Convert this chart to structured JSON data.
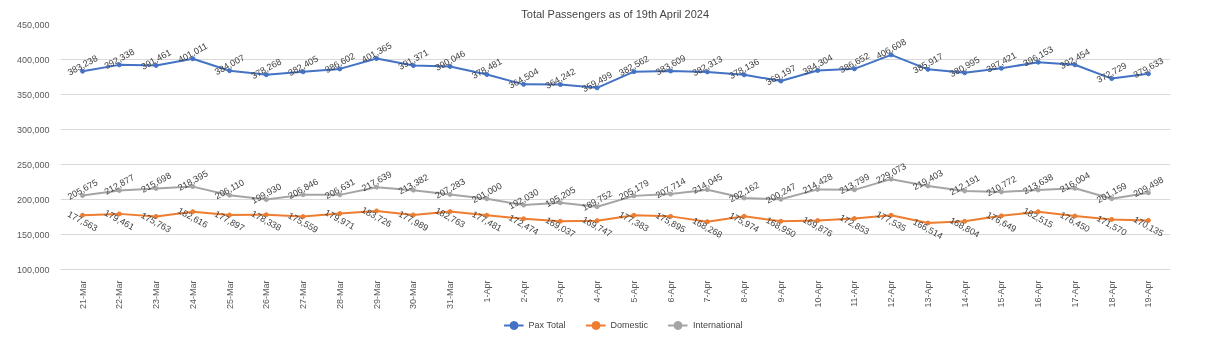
{
  "chart_data": {
    "type": "line",
    "title": "Total Passengers as of 19th April 2024",
    "categories": [
      "21-Mar",
      "22-Mar",
      "23-Mar",
      "24-Mar",
      "25-Mar",
      "26-Mar",
      "27-Mar",
      "28-Mar",
      "29-Mar",
      "30-Mar",
      "31-Mar",
      "1-Apr",
      "2-Apr",
      "3-Apr",
      "4-Apr",
      "5-Apr",
      "6-Apr",
      "7-Apr",
      "8-Apr",
      "9-Apr",
      "10-Apr",
      "11-Apr",
      "12-Apr",
      "13-Apr",
      "14-Apr",
      "15-Apr",
      "16-Apr",
      "17-Apr",
      "18-Apr",
      "19-Apr"
    ],
    "series": [
      {
        "name": "Pax Total",
        "color": "#4472c4",
        "values": [
          383238,
          392338,
          391461,
          401011,
          384007,
          378268,
          382405,
          386602,
          401365,
          391371,
          390046,
          378481,
          364504,
          364242,
          359499,
          382562,
          383609,
          382313,
          378136,
          369197,
          384304,
          386652,
          406608,
          385917,
          380995,
          387421,
          396153,
          392454,
          372729,
          379633
        ],
        "value_labels": [
          "383,238",
          "392,338",
          "391,461",
          "401,011",
          "384,007",
          "378,268",
          "382,405",
          "386,602",
          "401,365",
          "391,371",
          "390,046",
          "378,481",
          "364,504",
          "364,242",
          "359,499",
          "382,562",
          "383,609",
          "382,313",
          "378,136",
          "369,197",
          "384,304",
          "386,652",
          "406,608",
          "385,917",
          "380,995",
          "387,421",
          "396,153",
          "392,454",
          "372,729",
          "379,633"
        ]
      },
      {
        "name": "Domestic",
        "color": "#ed7d31",
        "values": [
          177563,
          179461,
          175763,
          182616,
          177897,
          178338,
          175559,
          179971,
          183726,
          177989,
          182763,
          177481,
          172474,
          169037,
          169747,
          177383,
          175895,
          168268,
          175974,
          168950,
          169876,
          172853,
          177535,
          166514,
          168804,
          176649,
          182515,
          176450,
          171570,
          170135
        ],
        "value_labels": [
          "177,563",
          "179,461",
          "175,763",
          "182,616",
          "177,897",
          "178,338",
          "175,559",
          "179,971",
          "183,726",
          "177,989",
          "182,763",
          "177,481",
          "172,474",
          "169,037",
          "169,747",
          "177,383",
          "175,895",
          "168,268",
          "175,974",
          "168,950",
          "169,876",
          "172,853",
          "177,535",
          "166,514",
          "168,804",
          "176,649",
          "182,515",
          "176,450",
          "171,570",
          "170,135"
        ]
      },
      {
        "name": "International",
        "color": "#a5a5a5",
        "values": [
          205675,
          212877,
          215698,
          218395,
          206110,
          199930,
          206846,
          206631,
          217639,
          213382,
          207283,
          201000,
          192030,
          195205,
          189752,
          205179,
          207714,
          214045,
          202162,
          200247,
          214428,
          213799,
          229073,
          219403,
          212191,
          210772,
          213638,
          216004,
          201159,
          209498
        ],
        "value_labels": [
          "205,675",
          "212,877",
          "215,698",
          "218,395",
          "206,110",
          "199,930",
          "206,846",
          "206,631",
          "217,639",
          "213,382",
          "207,283",
          "201,000",
          "192,030",
          "195,205",
          "189,752",
          "205,179",
          "207,714",
          "214,045",
          "202,162",
          "200,247",
          "214,428",
          "213,799",
          "229,073",
          "219,403",
          "212,191",
          "210,772",
          "213,638",
          "216,004",
          "201,159",
          "209,498"
        ]
      }
    ],
    "ylim": [
      100000,
      450000
    ],
    "yticks": [
      {
        "value": 100000,
        "label": "100,000"
      },
      {
        "value": 150000,
        "label": "150,000"
      },
      {
        "value": 200000,
        "label": "200,000"
      },
      {
        "value": 250000,
        "label": "250,000"
      },
      {
        "value": 300000,
        "label": "300,000"
      },
      {
        "value": 350000,
        "label": "350,000"
      },
      {
        "value": 400000,
        "label": "400,000"
      },
      {
        "value": 450000,
        "label": "450,000"
      }
    ],
    "grid": "y",
    "legend": "bottom",
    "marker": "circle",
    "line_style": "solid"
  }
}
